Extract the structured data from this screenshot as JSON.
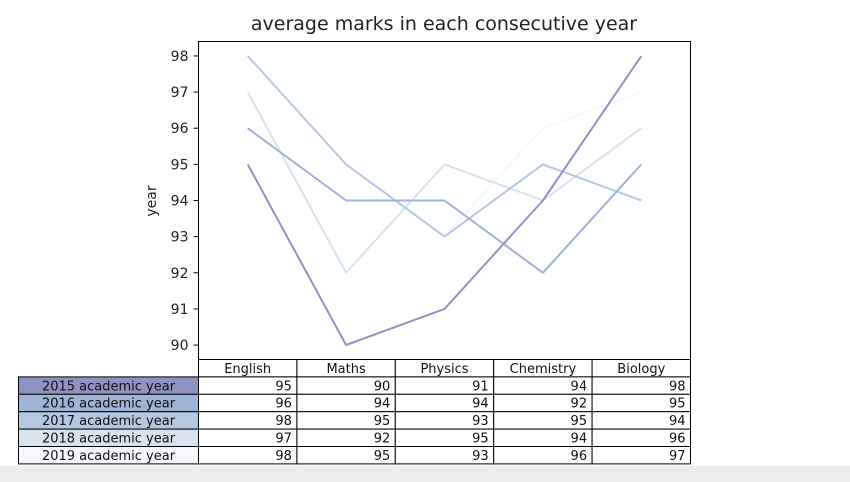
{
  "chart_data": {
    "type": "line",
    "title": "average marks in each consecutive year",
    "xlabel": "",
    "ylabel": "year",
    "ylim": [
      89.6,
      98.4
    ],
    "yticks": [
      90,
      91,
      92,
      93,
      94,
      95,
      96,
      97,
      98
    ],
    "grid": false,
    "categories": [
      "English",
      "Maths",
      "Physics",
      "Chemistry",
      "Biology"
    ],
    "series": [
      {
        "name": "2015 academic year",
        "color": "#8f93c3",
        "values": [
          95,
          90,
          91,
          94,
          98
        ]
      },
      {
        "name": "2016 academic year",
        "color": "#9eb3d5",
        "values": [
          96,
          94,
          94,
          92,
          95
        ]
      },
      {
        "name": "2017 academic year",
        "color": "#b4c8e2",
        "values": [
          98,
          95,
          93,
          95,
          94
        ]
      },
      {
        "name": "2018 academic year",
        "color": "#d7e3ef",
        "values": [
          97,
          92,
          95,
          94,
          96
        ]
      },
      {
        "name": "2019 academic year",
        "color": "#f6f7fb",
        "values": [
          98,
          95,
          93,
          96,
          97
        ]
      }
    ]
  }
}
